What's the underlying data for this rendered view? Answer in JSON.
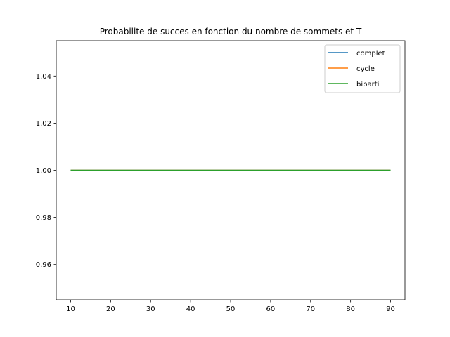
{
  "chart_data": {
    "type": "line",
    "title": "Probabilite de succes en fonction du nombre de sommets et T",
    "xlabel": "",
    "ylabel": "",
    "xlim": [
      6.4,
      93.6
    ],
    "ylim": [
      0.945,
      1.055
    ],
    "xticks": [
      10,
      20,
      30,
      40,
      50,
      60,
      70,
      80,
      90
    ],
    "yticks": [
      0.96,
      0.98,
      1.0,
      1.02,
      1.04
    ],
    "ytick_labels": [
      "0.96",
      "0.98",
      "1.00",
      "1.02",
      "1.04"
    ],
    "grid": false,
    "legend_position": "top-right",
    "x": [
      10,
      20,
      30,
      40,
      50,
      60,
      70,
      80,
      90
    ],
    "series": [
      {
        "name": "complet",
        "color": "#1f77b4",
        "values": [
          1,
          1,
          1,
          1,
          1,
          1,
          1,
          1,
          1
        ]
      },
      {
        "name": "cycle",
        "color": "#ff7f0e",
        "values": [
          1,
          1,
          1,
          1,
          1,
          1,
          1,
          1,
          1
        ]
      },
      {
        "name": "biparti",
        "color": "#2ca02c",
        "values": [
          1,
          1,
          1,
          1,
          1,
          1,
          1,
          1,
          1
        ]
      }
    ]
  }
}
